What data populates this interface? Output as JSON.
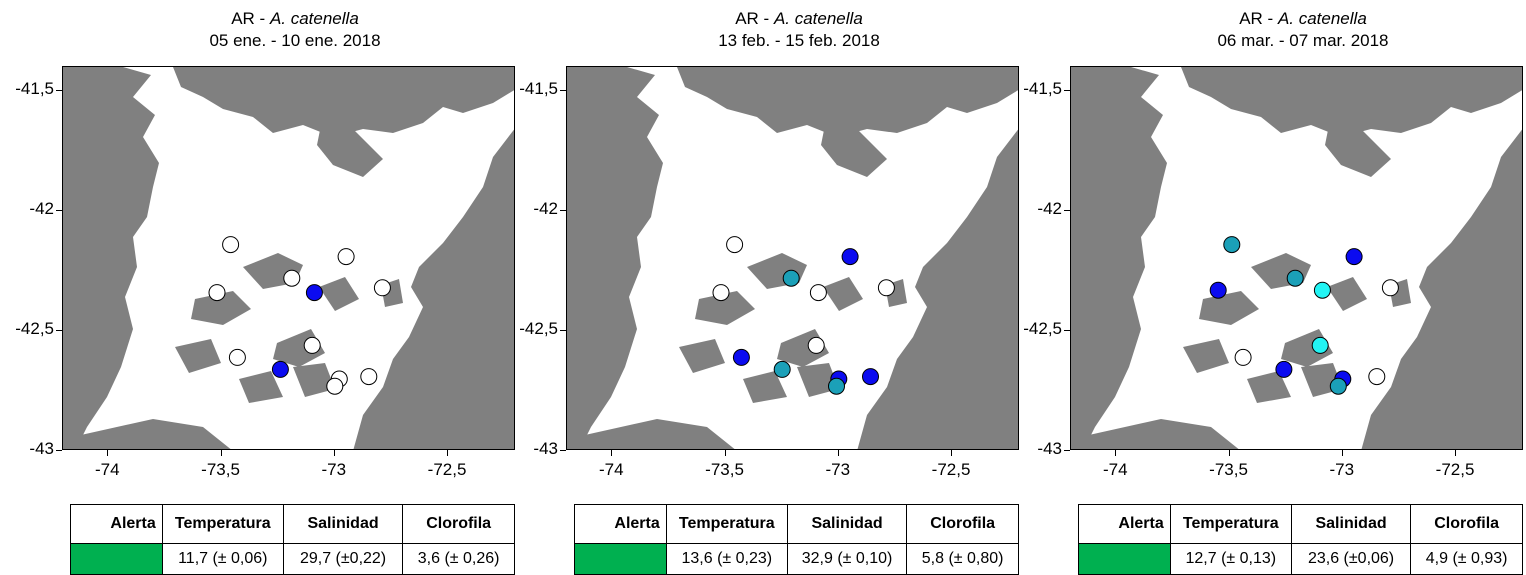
{
  "panels": [
    {
      "title_prefix": "AR - ",
      "title_species": "A. catenella",
      "date_range": "05 ene. - 10 ene. 2018",
      "y_ticks": [
        "-41,5",
        "-42",
        "-42,5",
        "-43"
      ],
      "x_ticks": [
        "-74",
        "-73,5",
        "-73",
        "-72,5"
      ],
      "stations": [
        {
          "lon": -73.46,
          "lat": -42.14,
          "color": "#ffffff"
        },
        {
          "lon": -72.95,
          "lat": -42.19,
          "color": "#ffffff"
        },
        {
          "lon": -73.19,
          "lat": -42.28,
          "color": "#ffffff"
        },
        {
          "lon": -73.52,
          "lat": -42.34,
          "color": "#ffffff"
        },
        {
          "lon": -73.09,
          "lat": -42.34,
          "color": "#0b0bf0"
        },
        {
          "lon": -72.79,
          "lat": -42.32,
          "color": "#ffffff"
        },
        {
          "lon": -73.1,
          "lat": -42.56,
          "color": "#ffffff"
        },
        {
          "lon": -73.43,
          "lat": -42.61,
          "color": "#ffffff"
        },
        {
          "lon": -73.24,
          "lat": -42.66,
          "color": "#0b0bf0"
        },
        {
          "lon": -72.85,
          "lat": -42.69,
          "color": "#ffffff"
        },
        {
          "lon": -72.98,
          "lat": -42.7,
          "color": "#ffffff"
        },
        {
          "lon": -73.0,
          "lat": -42.73,
          "color": "#ffffff"
        }
      ],
      "table": {
        "headers": [
          "Alerta",
          "Temperatura",
          "Salinidad",
          "Clorofila"
        ],
        "alert_color": "#00b050",
        "temperatura": "11,7 (± 0,06)",
        "salinidad": "29,7 (±0,22)",
        "clorofila": "3,6 (± 0,26)"
      }
    },
    {
      "title_prefix": "AR - ",
      "title_species": "A. catenella",
      "date_range": "13 feb. - 15 feb. 2018",
      "y_ticks": [
        "-41,5",
        "-42",
        "-42,5",
        "-43"
      ],
      "x_ticks": [
        "-74",
        "-73,5",
        "-73",
        "-72,5"
      ],
      "stations": [
        {
          "lon": -73.46,
          "lat": -42.14,
          "color": "#ffffff"
        },
        {
          "lon": -72.95,
          "lat": -42.19,
          "color": "#0b0bf0"
        },
        {
          "lon": -73.21,
          "lat": -42.28,
          "color": "#1ba0b8"
        },
        {
          "lon": -73.52,
          "lat": -42.34,
          "color": "#ffffff"
        },
        {
          "lon": -73.09,
          "lat": -42.34,
          "color": "#ffffff"
        },
        {
          "lon": -72.79,
          "lat": -42.32,
          "color": "#ffffff"
        },
        {
          "lon": -73.1,
          "lat": -42.56,
          "color": "#ffffff"
        },
        {
          "lon": -73.43,
          "lat": -42.61,
          "color": "#0b0bf0"
        },
        {
          "lon": -73.25,
          "lat": -42.66,
          "color": "#1ba0b8"
        },
        {
          "lon": -72.86,
          "lat": -42.69,
          "color": "#0b0bf0"
        },
        {
          "lon": -73.0,
          "lat": -42.7,
          "color": "#0b0bf0"
        },
        {
          "lon": -73.01,
          "lat": -42.73,
          "color": "#1ba0b8"
        }
      ],
      "table": {
        "headers": [
          "Alerta",
          "Temperatura",
          "Salinidad",
          "Clorofila"
        ],
        "alert_color": "#00b050",
        "temperatura": "13,6 (± 0,23)",
        "salinidad": "32,9 (± 0,10)",
        "clorofila": "5,8 (± 0,80)"
      }
    },
    {
      "title_prefix": "AR - ",
      "title_species": "A. catenella",
      "date_range": "06 mar. - 07 mar. 2018",
      "y_ticks": [
        "-41,5",
        "-42",
        "-42,5",
        "-43"
      ],
      "x_ticks": [
        "-74",
        "-73,5",
        "-73",
        "-72,5"
      ],
      "stations": [
        {
          "lon": -73.49,
          "lat": -42.14,
          "color": "#1ba0b8"
        },
        {
          "lon": -72.95,
          "lat": -42.19,
          "color": "#0b0bf0"
        },
        {
          "lon": -73.21,
          "lat": -42.28,
          "color": "#1ba0b8"
        },
        {
          "lon": -73.55,
          "lat": -42.33,
          "color": "#0b0bf0"
        },
        {
          "lon": -73.09,
          "lat": -42.33,
          "color": "#22f4f4"
        },
        {
          "lon": -72.79,
          "lat": -42.32,
          "color": "#ffffff"
        },
        {
          "lon": -73.1,
          "lat": -42.56,
          "color": "#22f4f4"
        },
        {
          "lon": -73.44,
          "lat": -42.61,
          "color": "#ffffff"
        },
        {
          "lon": -73.26,
          "lat": -42.66,
          "color": "#0b0bf0"
        },
        {
          "lon": -72.85,
          "lat": -42.69,
          "color": "#ffffff"
        },
        {
          "lon": -73.0,
          "lat": -42.7,
          "color": "#0b0bf0"
        },
        {
          "lon": -73.02,
          "lat": -42.73,
          "color": "#1ba0b8"
        }
      ],
      "table": {
        "headers": [
          "Alerta",
          "Temperatura",
          "Salinidad",
          "Clorofila"
        ],
        "alert_color": "#00b050",
        "temperatura": "12,7 (± 0,13)",
        "salinidad": "23,6 (±0,06)",
        "clorofila": "4,9 (± 0,93)"
      }
    }
  ],
  "land_color": "#808080",
  "water_color": "#ffffff"
}
